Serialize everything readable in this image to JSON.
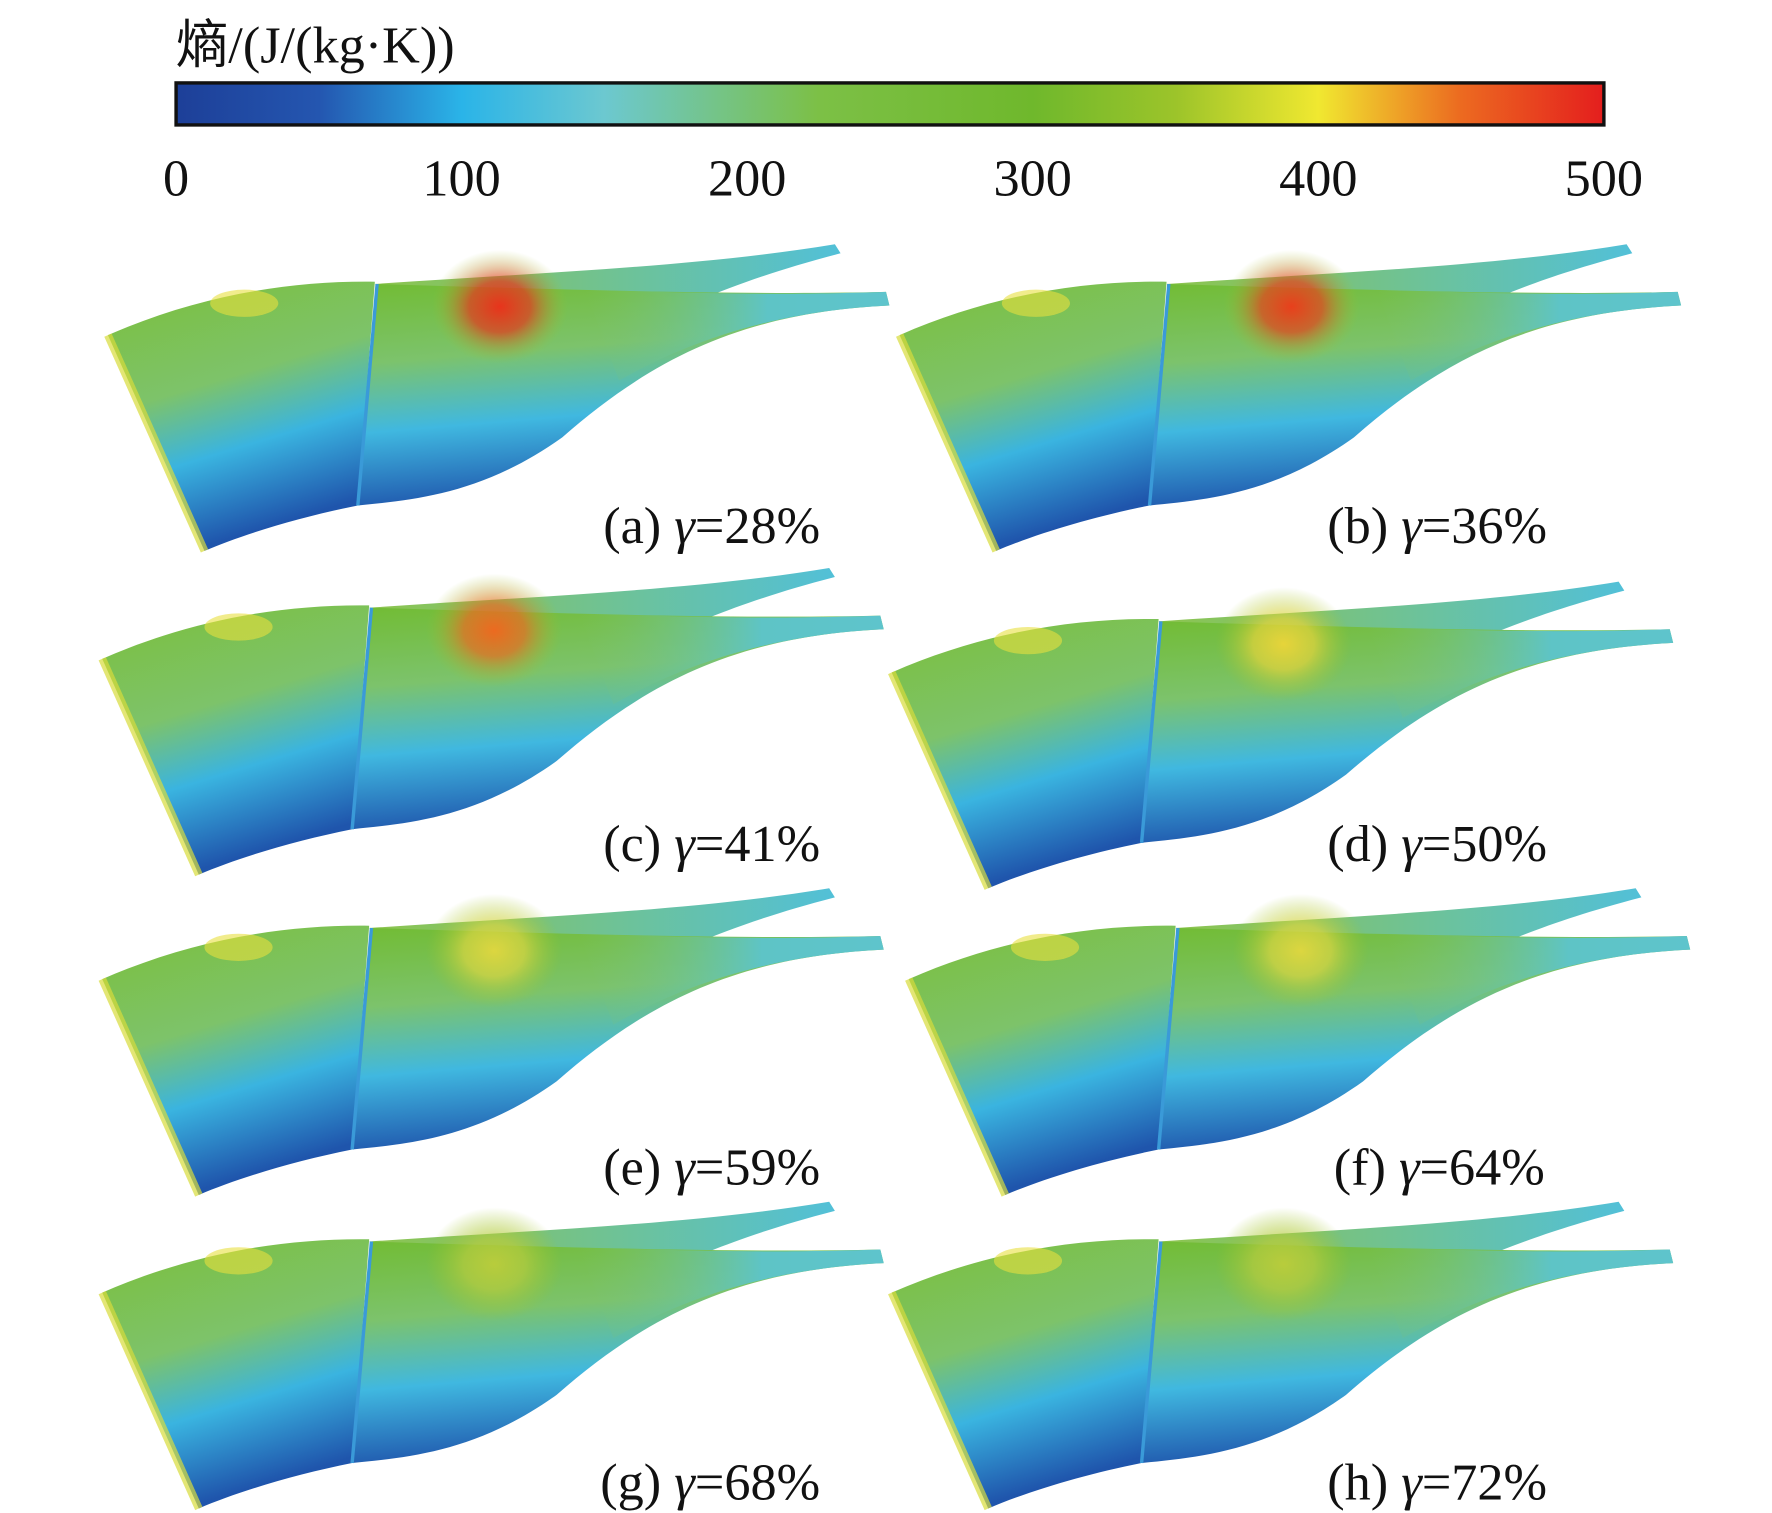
{
  "colorbar": {
    "title": "熵/(J/(kg·K))",
    "lim": [
      0,
      500
    ],
    "ticks": [
      0,
      100,
      200,
      300,
      400,
      500
    ]
  },
  "panels": [
    {
      "label": "(a) ",
      "symbol": "γ",
      "value": "=28%",
      "hotspot": "#e8341c"
    },
    {
      "label": "(b) ",
      "symbol": "γ",
      "value": "=36%",
      "hotspot": "#e8401c"
    },
    {
      "label": "(c) ",
      "symbol": "γ",
      "value": "=41%",
      "hotspot": "#ec6a20"
    },
    {
      "label": "(d) ",
      "symbol": "γ",
      "value": "=50%",
      "hotspot": "#e6d43a"
    },
    {
      "label": "(e) ",
      "symbol": "γ",
      "value": "=59%",
      "hotspot": "#dcd640"
    },
    {
      "label": "(f) ",
      "symbol": "γ",
      "value": "=64%",
      "hotspot": "#dcd640"
    },
    {
      "label": "(g) ",
      "symbol": "γ",
      "value": "=68%",
      "hotspot": "#b8cc3c"
    },
    {
      "label": "(h) ",
      "symbol": "γ",
      "value": "=72%",
      "hotspot": "#b8cc3c"
    }
  ]
}
